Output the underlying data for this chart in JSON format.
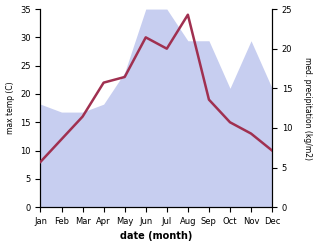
{
  "months": [
    "Jan",
    "Feb",
    "Mar",
    "Apr",
    "May",
    "Jun",
    "Jul",
    "Aug",
    "Sep",
    "Oct",
    "Nov",
    "Dec"
  ],
  "temperature": [
    8,
    12,
    16,
    22,
    23,
    30,
    28,
    34,
    19,
    15,
    13,
    10
  ],
  "precipitation": [
    13,
    12,
    12,
    13,
    17,
    25,
    25,
    21,
    21,
    15,
    21,
    15
  ],
  "temp_color": "#a03050",
  "precip_color": "#aab4e8",
  "precip_fill_alpha": 0.65,
  "xlabel": "date (month)",
  "ylabel_left": "max temp (C)",
  "ylabel_right": "med. precipitation (kg/m2)",
  "ylim_left": [
    0,
    35
  ],
  "ylim_right": [
    0,
    25
  ],
  "yticks_left": [
    0,
    5,
    10,
    15,
    20,
    25,
    30,
    35
  ],
  "yticks_right": [
    0,
    5,
    10,
    15,
    20,
    25
  ],
  "background_color": "#ffffff",
  "line_width": 1.8
}
